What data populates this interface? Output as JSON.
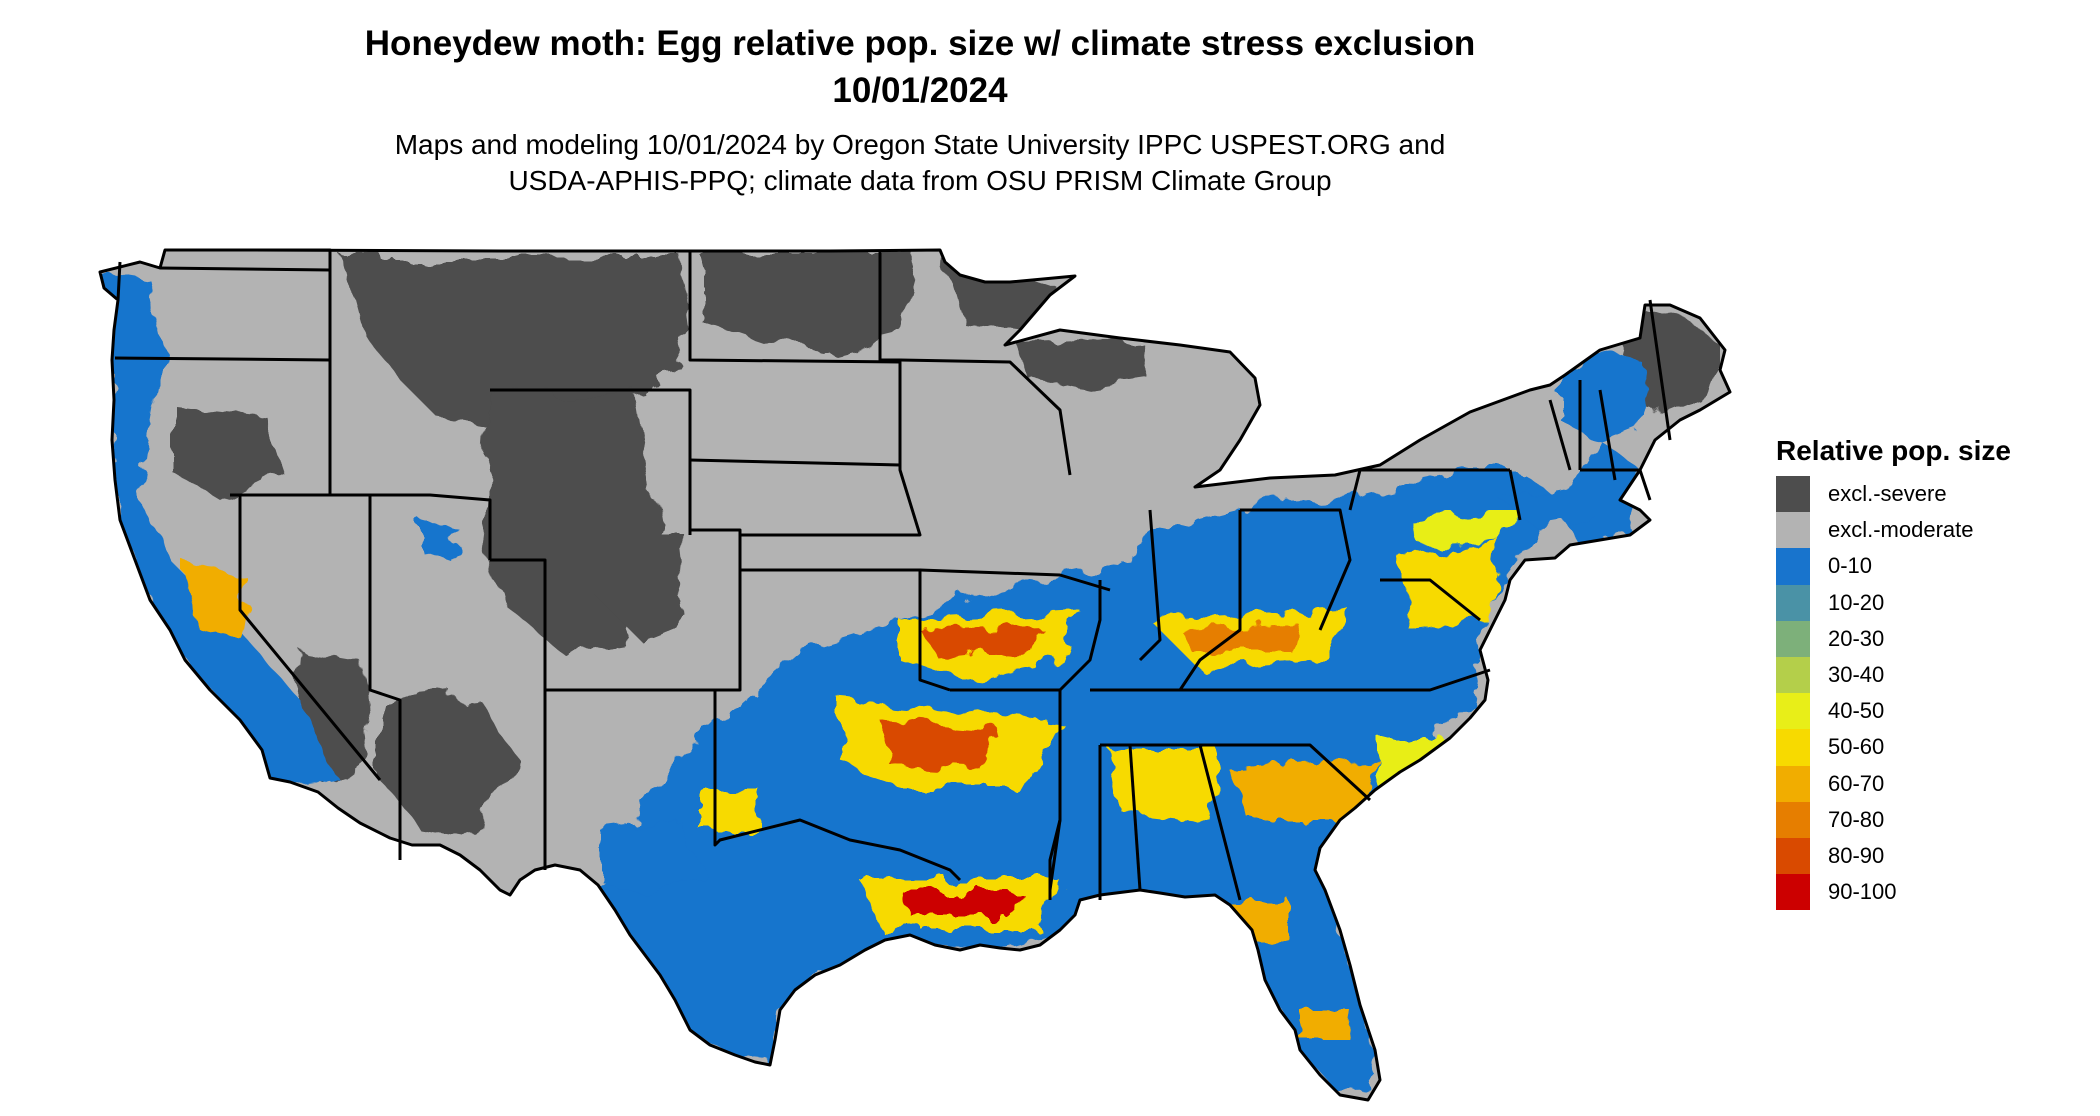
{
  "title": {
    "line1": "Honeydew moth: Egg relative pop. size w/ climate stress exclusion",
    "line2": "10/01/2024"
  },
  "subtitle": {
    "line1": "Maps and modeling 10/01/2024 by Oregon State University IPPC USPEST.ORG and",
    "line2": "USDA-APHIS-PPQ; climate data from OSU PRISM Climate Group"
  },
  "legend": {
    "title": "Relative pop. size",
    "items": [
      {
        "label": "excl.-severe",
        "color": "#4d4d4d"
      },
      {
        "label": "excl.-moderate",
        "color": "#b3b3b3"
      },
      {
        "label": "0-10",
        "color": "#1874cd"
      },
      {
        "label": "10-20",
        "color": "#4a92a6"
      },
      {
        "label": "20-30",
        "color": "#7db07a"
      },
      {
        "label": "30-40",
        "color": "#b4cf4a"
      },
      {
        "label": "40-50",
        "color": "#e8ee18"
      },
      {
        "label": "50-60",
        "color": "#f7da00"
      },
      {
        "label": "60-70",
        "color": "#f1ad00"
      },
      {
        "label": "70-80",
        "color": "#e67e00"
      },
      {
        "label": "80-90",
        "color": "#d94a00"
      },
      {
        "label": "90-100",
        "color": "#cc0000"
      }
    ]
  }
}
